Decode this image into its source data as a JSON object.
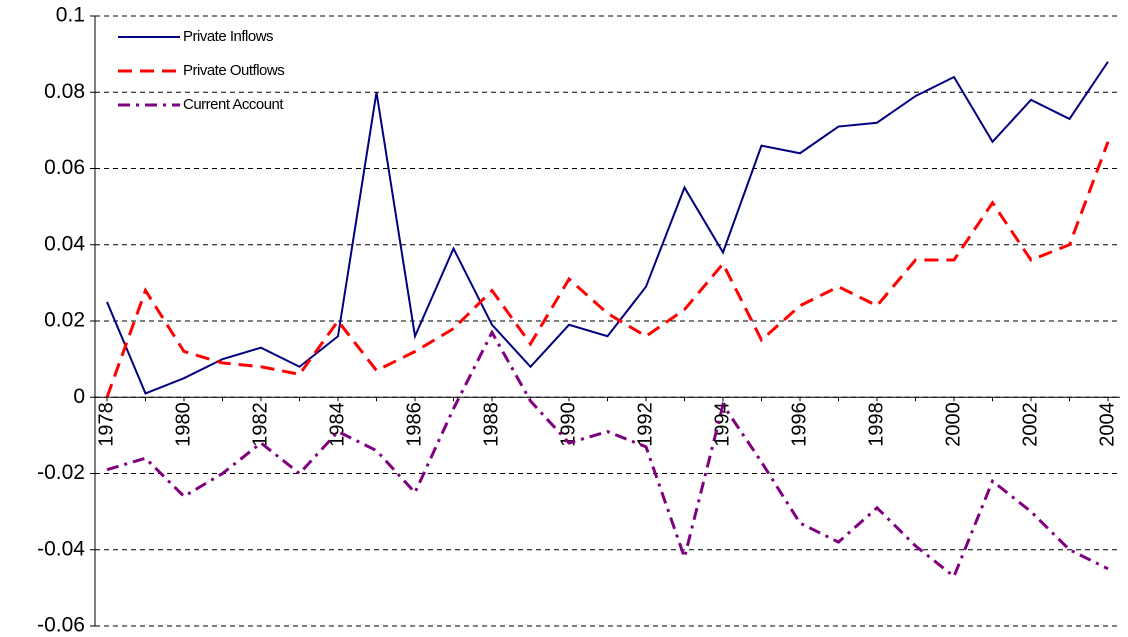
{
  "chart_data": {
    "type": "line",
    "categories": [
      "1978",
      null,
      "1980",
      null,
      "1982",
      null,
      "1984",
      null,
      "1986",
      null,
      "1988",
      null,
      "1990",
      null,
      "1992",
      null,
      "1994",
      null,
      "1996",
      null,
      "1998",
      null,
      "2000",
      null,
      "2002",
      null,
      "2004"
    ],
    "series": [
      {
        "name": "Private Inflows",
        "color": "#000080",
        "dash": "solid",
        "values": [
          0.025,
          0.001,
          0.005,
          0.01,
          0.013,
          0.008,
          0.016,
          0.08,
          0.016,
          0.039,
          0.019,
          0.008,
          0.019,
          0.016,
          0.029,
          0.055,
          0.038,
          0.066,
          0.064,
          0.071,
          0.072,
          0.079,
          0.084,
          0.067,
          0.078,
          0.073,
          0.088
        ]
      },
      {
        "name": "Private Outflows",
        "color": "#ff0000",
        "dash": "dashed",
        "values": [
          0.0,
          0.028,
          0.012,
          0.009,
          0.008,
          0.006,
          0.02,
          0.007,
          0.012,
          0.018,
          0.028,
          0.014,
          0.031,
          0.022,
          0.016,
          0.023,
          0.035,
          0.015,
          0.024,
          0.029,
          0.024,
          0.036,
          0.036,
          0.051,
          0.036,
          0.04,
          0.067
        ]
      },
      {
        "name": "Current Account",
        "color": "#800080",
        "dash": "dashdot",
        "values": [
          -0.019,
          -0.016,
          -0.026,
          -0.02,
          -0.012,
          -0.02,
          -0.009,
          -0.014,
          -0.025,
          -0.003,
          0.017,
          -0.001,
          -0.012,
          -0.009,
          -0.013,
          -0.042,
          -0.002,
          -0.017,
          -0.033,
          -0.038,
          -0.029,
          -0.039,
          -0.047,
          -0.022,
          -0.03,
          -0.04,
          -0.045
        ]
      }
    ],
    "ylim": [
      -0.06,
      0.1
    ],
    "yticks": [
      -0.06,
      -0.04,
      -0.02,
      0,
      0.02,
      0.04,
      0.06,
      0.08,
      0.1
    ],
    "grid": true,
    "legend": "top-left"
  }
}
